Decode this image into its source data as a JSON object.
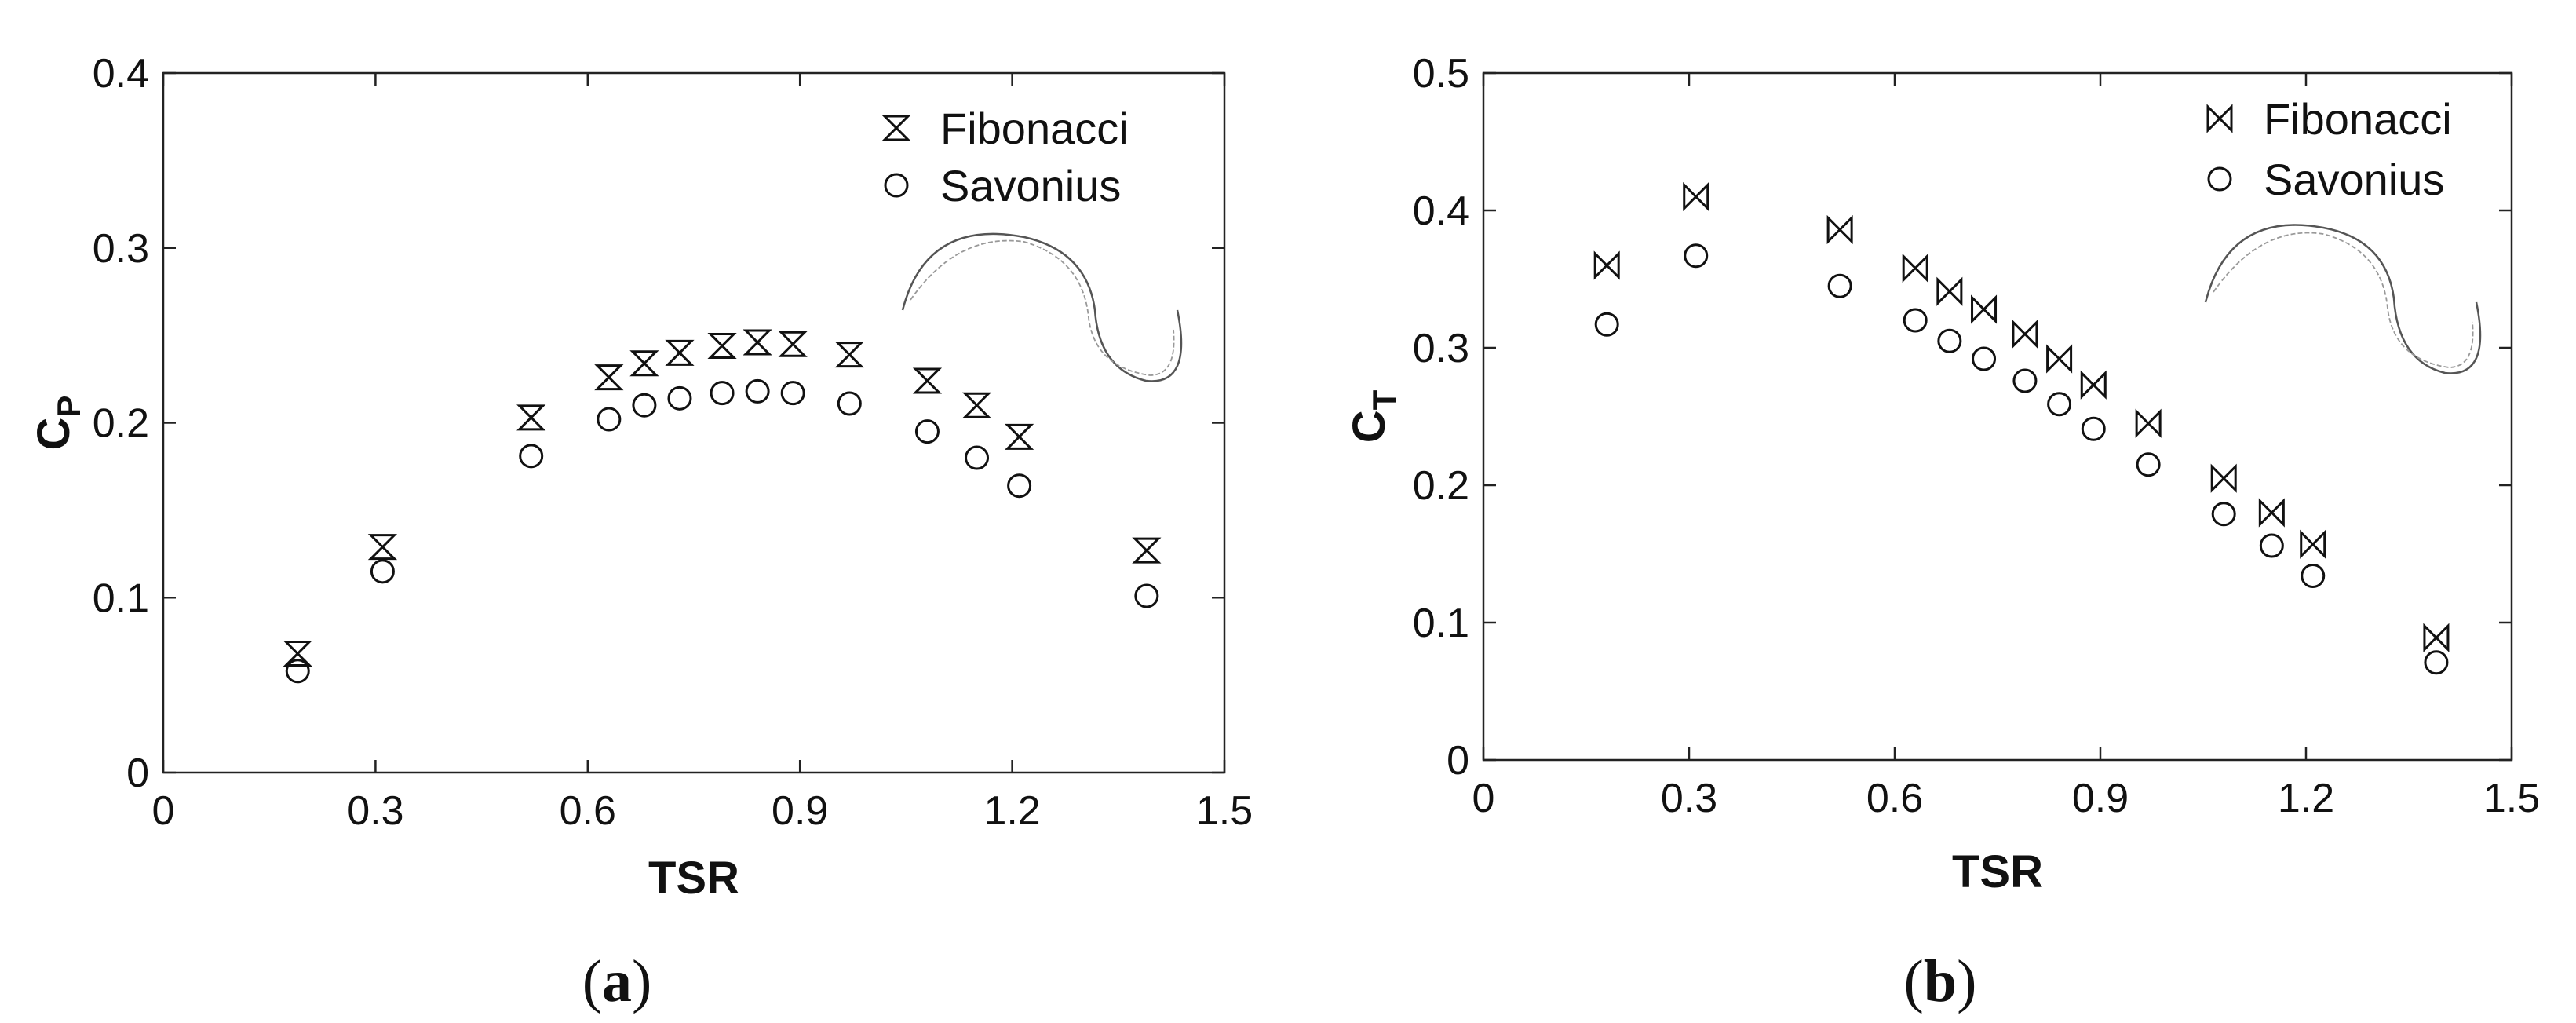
{
  "chart_data": [
    {
      "type": "scatter",
      "panel_label": "(a)",
      "xlabel": "TSR",
      "ylabel": "C",
      "ylabel_sub": "P",
      "xlim": [
        0,
        1.5
      ],
      "ylim": [
        0,
        0.4
      ],
      "xticks": [
        "0",
        "0.3",
        "0.6",
        "0.9",
        "1.2",
        "1.5"
      ],
      "yticks": [
        "0",
        "0.1",
        "0.2",
        "0.3",
        "0.4"
      ],
      "legend_position": "top-right",
      "series": [
        {
          "name": "Fibonacci",
          "marker": "hourglass",
          "x": [
            0.19,
            0.31,
            0.52,
            0.63,
            0.68,
            0.73,
            0.79,
            0.84,
            0.89,
            0.97,
            1.08,
            1.15,
            1.21,
            1.39
          ],
          "y": [
            0.068,
            0.129,
            0.203,
            0.226,
            0.234,
            0.24,
            0.244,
            0.246,
            0.245,
            0.239,
            0.224,
            0.21,
            0.192,
            0.127
          ]
        },
        {
          "name": "Savonius",
          "marker": "circle",
          "x": [
            0.19,
            0.31,
            0.52,
            0.63,
            0.68,
            0.73,
            0.79,
            0.84,
            0.89,
            0.97,
            1.08,
            1.15,
            1.21,
            1.39
          ],
          "y": [
            0.058,
            0.115,
            0.181,
            0.202,
            0.21,
            0.214,
            0.217,
            0.218,
            0.217,
            0.211,
            0.195,
            0.18,
            0.164,
            0.101
          ]
        }
      ]
    },
    {
      "type": "scatter",
      "panel_label": "(b)",
      "xlabel": "TSR",
      "ylabel": "C",
      "ylabel_sub": "T",
      "xlim": [
        0,
        1.5
      ],
      "ylim": [
        0,
        0.5
      ],
      "xticks": [
        "0",
        "0.3",
        "0.6",
        "0.9",
        "1.2",
        "1.5"
      ],
      "yticks": [
        "0",
        "0.1",
        "0.2",
        "0.3",
        "0.4",
        "0.5"
      ],
      "legend_position": "top-right",
      "series": [
        {
          "name": "Fibonacci",
          "marker": "bowtie",
          "x": [
            0.18,
            0.31,
            0.52,
            0.63,
            0.68,
            0.73,
            0.79,
            0.84,
            0.89,
            0.97,
            1.08,
            1.15,
            1.21,
            1.39
          ],
          "y": [
            0.36,
            0.41,
            0.386,
            0.358,
            0.341,
            0.328,
            0.31,
            0.292,
            0.273,
            0.245,
            0.205,
            0.18,
            0.157,
            0.089
          ]
        },
        {
          "name": "Savonius",
          "marker": "circle",
          "x": [
            0.18,
            0.31,
            0.52,
            0.63,
            0.68,
            0.73,
            0.79,
            0.84,
            0.89,
            0.97,
            1.08,
            1.15,
            1.21,
            1.39
          ],
          "y": [
            0.317,
            0.367,
            0.345,
            0.32,
            0.305,
            0.292,
            0.276,
            0.259,
            0.241,
            0.215,
            0.179,
            0.156,
            0.134,
            0.071
          ]
        }
      ]
    }
  ]
}
